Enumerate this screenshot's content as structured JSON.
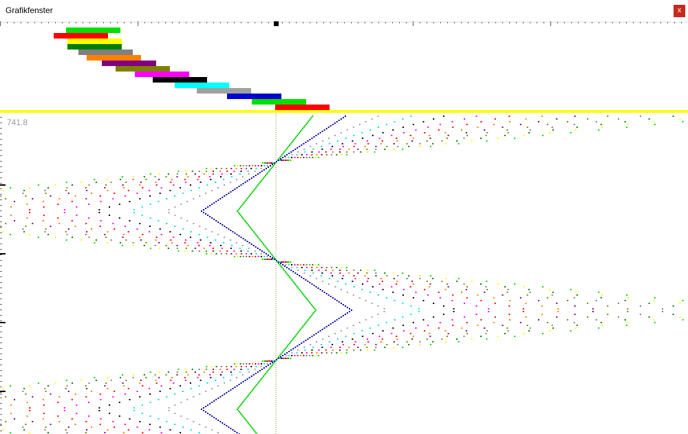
{
  "window": {
    "title": "Grafikfenster",
    "close": "x"
  },
  "plot": {
    "axis_label": "741.8"
  }
}
